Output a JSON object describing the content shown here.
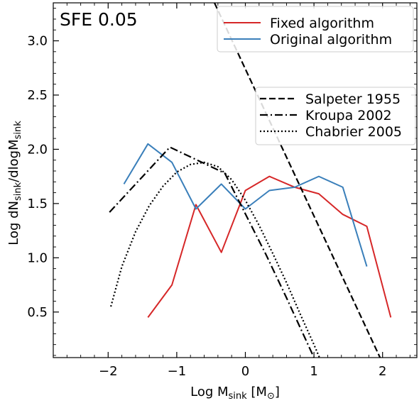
{
  "chart_data": {
    "type": "line",
    "annotation": "SFE 0.05",
    "xlabel": "Log M_sink [M⊙]",
    "ylabel": "Log dN_sink/dlogM_sink",
    "xlim": [
      -2.8,
      2.5
    ],
    "ylim": [
      0.08,
      3.35
    ],
    "x_ticks": [
      -2,
      -1,
      0,
      1,
      2
    ],
    "x_tick_labels": [
      "−2",
      "−1",
      "0",
      "1",
      "2"
    ],
    "y_ticks": [
      0.5,
      1.0,
      1.5,
      2.0,
      2.5,
      3.0
    ],
    "y_tick_labels": [
      "0.5",
      "1.0",
      "1.5",
      "2.0",
      "2.5",
      "3.0"
    ],
    "grid": false,
    "legend_top_right": [
      {
        "name": "Fixed algorithm",
        "color": "#d62728",
        "style": "solid"
      },
      {
        "name": "Original algorithm",
        "color": "#3a7fba",
        "style": "solid"
      }
    ],
    "legend_right": [
      {
        "name": "Salpeter 1955",
        "color": "#000000",
        "style": "dashed"
      },
      {
        "name": "Kroupa 2002",
        "color": "#000000",
        "style": "dashdot"
      },
      {
        "name": "Chabrier 2005",
        "color": "#000000",
        "style": "dotted"
      }
    ],
    "series": [
      {
        "name": "Fixed algorithm",
        "color": "#d62728",
        "style": "solid",
        "x": [
          -1.42,
          -1.07,
          -0.72,
          -0.35,
          0.0,
          0.35,
          0.72,
          1.07,
          1.42,
          1.77,
          2.12
        ],
        "y": [
          0.45,
          0.75,
          1.49,
          1.05,
          1.62,
          1.75,
          1.65,
          1.59,
          1.4,
          1.29,
          0.45
        ]
      },
      {
        "name": "Original algorithm",
        "color": "#3a7fba",
        "style": "solid",
        "x": [
          -1.77,
          -1.42,
          -1.07,
          -0.72,
          -0.35,
          0.0,
          0.35,
          0.72,
          1.07,
          1.42,
          1.77
        ],
        "y": [
          1.68,
          2.05,
          1.88,
          1.45,
          1.68,
          1.45,
          1.62,
          1.65,
          1.75,
          1.65,
          0.92
        ]
      },
      {
        "name": "Salpeter 1955",
        "color": "#000000",
        "style": "dashed",
        "x": [
          -0.45,
          2.0
        ],
        "y": [
          3.35,
          0.03
        ]
      },
      {
        "name": "Kroupa 2002",
        "color": "#000000",
        "style": "dashdot",
        "x": [
          -1.98,
          -1.1,
          -0.3,
          0.3,
          0.6,
          1.0
        ],
        "y": [
          1.42,
          2.02,
          1.78,
          1.03,
          0.63,
          0.08
        ]
      },
      {
        "name": "Chabrier 2005",
        "color": "#000000",
        "style": "dotted",
        "x": [
          -1.96,
          -1.8,
          -1.6,
          -1.4,
          -1.2,
          -1.0,
          -0.8,
          -0.6,
          -0.4,
          -0.2,
          0.0,
          0.2,
          0.4,
          0.6,
          0.8,
          1.0,
          1.1
        ],
        "y": [
          0.55,
          0.92,
          1.24,
          1.48,
          1.66,
          1.79,
          1.86,
          1.88,
          1.84,
          1.72,
          1.53,
          1.3,
          1.04,
          0.77,
          0.48,
          0.2,
          0.05
        ]
      }
    ]
  }
}
